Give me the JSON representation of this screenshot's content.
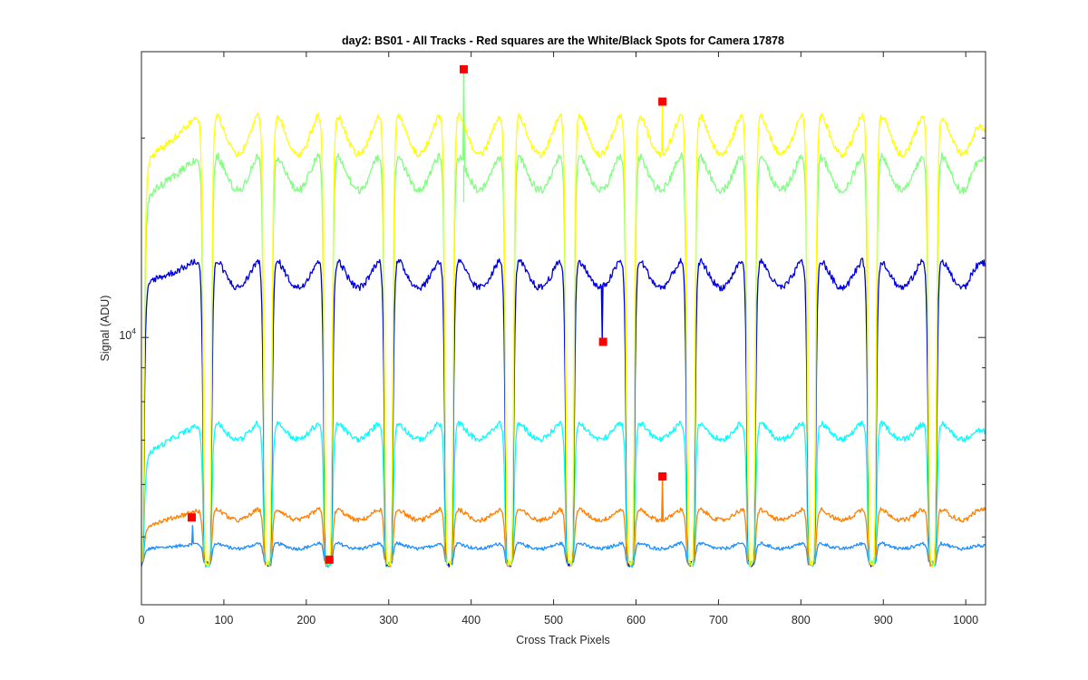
{
  "chart_data": {
    "type": "line",
    "title": "day2: BS01 - All Tracks - Red squares are the  White/Black Spots for Camera 17878",
    "xlabel": "Cross Track Pixels",
    "ylabel": "Signal (ADU)",
    "xlim": [
      0,
      1024
    ],
    "x_ticks": [
      0,
      100,
      200,
      300,
      400,
      500,
      600,
      700,
      800,
      900,
      1000
    ],
    "y_scale": "log",
    "ylim": [
      3950,
      27000
    ],
    "y_tick_label": {
      "base": "10",
      "exponent": "4",
      "value": 10000
    },
    "y_minor_ticks": [
      5000,
      6000,
      7000,
      8000,
      9000,
      20000
    ],
    "grid": false,
    "legend": "none",
    "stripes": {
      "first_center": 80,
      "period": 73.3,
      "count": 13,
      "half_width": 6,
      "trough_value": 4550
    },
    "series": [
      {
        "color": "#ffff00",
        "edge_peak": 22800,
        "center_dip": 18900,
        "first_rise": 18600,
        "last_value": 20600,
        "noise": 0.012
      },
      {
        "color": "#80ff80",
        "edge_peak": 19700,
        "center_dip": 16700,
        "first_rise": 16400,
        "last_value": 18600,
        "noise": 0.014
      },
      {
        "color": "#0000e0",
        "edge_peak": 13550,
        "center_dip": 11900,
        "first_rise": 12250,
        "last_value": 12950,
        "noise": 0.012
      },
      {
        "color": "#00ffff",
        "edge_peak": 7600,
        "center_dip": 7020,
        "first_rise": 6650,
        "last_value": 7200,
        "noise": 0.01
      },
      {
        "color": "#ff8000",
        "edge_peak": 5580,
        "center_dip": 5300,
        "first_rise": 5200,
        "last_value": 5500,
        "noise": 0.008
      },
      {
        "color": "#1e90ff",
        "edge_peak": 4920,
        "center_dip": 4800,
        "first_rise": 4800,
        "last_value": 4840,
        "noise": 0.006
      }
    ],
    "spikes": [
      {
        "series": 1,
        "x": 391,
        "value": 25400
      },
      {
        "series": 1,
        "x": 391,
        "value": 16000
      },
      {
        "series": 0,
        "x": 632,
        "value": 22700
      },
      {
        "series": 2,
        "x": 559,
        "value": 9900
      },
      {
        "series": 4,
        "x": 632,
        "value": 6150
      },
      {
        "series": 5,
        "x": 62,
        "value": 5200
      }
    ],
    "bad_pixel_markers": [
      {
        "x": 391,
        "value": 25400
      },
      {
        "x": 632,
        "value": 22700
      },
      {
        "x": 560,
        "value": 9850
      },
      {
        "x": 632,
        "value": 6170
      },
      {
        "x": 61,
        "value": 5350
      },
      {
        "x": 228,
        "value": 4620
      }
    ],
    "marker_color": "#ff0000"
  }
}
